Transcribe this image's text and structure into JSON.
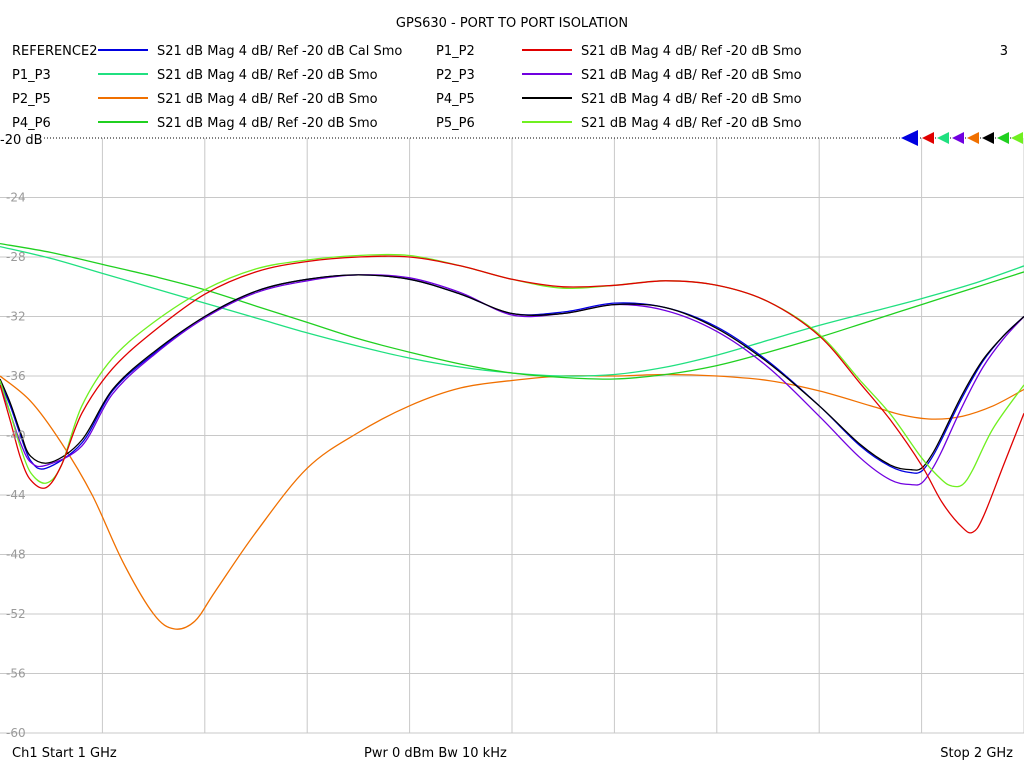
{
  "chart_data": {
    "type": "line",
    "title": "GPS630 - PORT TO PORT ISOLATION",
    "window_number": "3",
    "ref_label": "-20 dB",
    "x_unit": "GHz",
    "x_start": 1.0,
    "x_stop": 2.0,
    "ylim": [
      -60,
      -20
    ],
    "y_ticks": [
      -24,
      -28,
      -32,
      -36,
      -40,
      -44,
      -48,
      -52,
      -56,
      -60
    ],
    "y_tick_labels": [
      "-24",
      "-28",
      "-32",
      "-36",
      "-40",
      "-44",
      "-48",
      "-52",
      "-56",
      "-60"
    ],
    "grid": true,
    "legend_position": "top",
    "footer": {
      "start": "Ch1  Start  1 GHz",
      "power": "Pwr  0 dBm  Bw  10 kHz",
      "stop": "Stop  2 GHz"
    },
    "series": [
      {
        "name": "REFERENCE2",
        "desc": "S21  dB Mag  4 dB/ Ref -20 dB  Cal Smo",
        "color": "#0000e0",
        "x": [
          1.0,
          1.01,
          1.02,
          1.03,
          1.045,
          1.08,
          1.11,
          1.15,
          1.2,
          1.25,
          1.3,
          1.35,
          1.4,
          1.45,
          1.5,
          1.55,
          1.6,
          1.65,
          1.7,
          1.75,
          1.8,
          1.84,
          1.87,
          1.89,
          1.9,
          1.91,
          1.92,
          1.94,
          1.96,
          1.98,
          2.0
        ],
        "values": [
          -36.4,
          -38.0,
          -40.0,
          -41.7,
          -42.2,
          -40.5,
          -37.0,
          -34.5,
          -32.0,
          -30.3,
          -29.5,
          -29.2,
          -29.5,
          -30.5,
          -31.8,
          -31.7,
          -31.1,
          -31.4,
          -32.7,
          -35.0,
          -38.0,
          -40.7,
          -42.1,
          -42.5,
          -42.4,
          -41.5,
          -40.2,
          -37.4,
          -35.0,
          -33.3,
          -32.0
        ]
      },
      {
        "name": "P1_P2",
        "desc": "S21  dB Mag  4 dB/ Ref -20 dB  Smo",
        "color": "#e00000",
        "x": [
          1.0,
          1.01,
          1.02,
          1.03,
          1.045,
          1.06,
          1.08,
          1.11,
          1.15,
          1.2,
          1.25,
          1.3,
          1.35,
          1.4,
          1.45,
          1.5,
          1.55,
          1.6,
          1.65,
          1.7,
          1.75,
          1.8,
          1.84,
          1.87,
          1.9,
          1.92,
          1.94,
          1.95,
          1.96,
          1.98,
          2.0
        ],
        "values": [
          -36.6,
          -39.0,
          -41.5,
          -43.0,
          -43.5,
          -42.0,
          -38.5,
          -35.5,
          -33.0,
          -30.5,
          -29.0,
          -28.3,
          -28.0,
          -28.0,
          -28.6,
          -29.5,
          -30.0,
          -29.9,
          -29.6,
          -29.9,
          -31.0,
          -33.3,
          -36.5,
          -39.0,
          -42.0,
          -44.5,
          -46.2,
          -46.5,
          -45.5,
          -42.0,
          -38.5
        ]
      },
      {
        "name": "P1_P3",
        "desc": "S21  dB Mag  4 dB/ Ref -20 dB  Smo",
        "color": "#20e080",
        "x": [
          1.0,
          1.05,
          1.1,
          1.15,
          1.2,
          1.25,
          1.3,
          1.35,
          1.4,
          1.45,
          1.5,
          1.55,
          1.6,
          1.65,
          1.7,
          1.75,
          1.8,
          1.85,
          1.9,
          1.95,
          2.0
        ],
        "values": [
          -27.3,
          -28.1,
          -29.1,
          -30.1,
          -31.1,
          -32.1,
          -33.1,
          -34.0,
          -34.8,
          -35.4,
          -35.8,
          -36.0,
          -35.9,
          -35.4,
          -34.6,
          -33.6,
          -32.6,
          -31.7,
          -30.8,
          -29.8,
          -28.6
        ]
      },
      {
        "name": "P2_P3",
        "desc": "S21  dB Mag  4 dB/ Ref -20 dB  Smo",
        "color": "#7000e0",
        "x": [
          1.0,
          1.01,
          1.02,
          1.03,
          1.045,
          1.08,
          1.11,
          1.15,
          1.2,
          1.25,
          1.3,
          1.35,
          1.4,
          1.45,
          1.5,
          1.55,
          1.6,
          1.65,
          1.7,
          1.75,
          1.8,
          1.84,
          1.87,
          1.89,
          1.9,
          1.91,
          1.92,
          1.94,
          1.96,
          1.98,
          2.0
        ],
        "values": [
          -36.6,
          -38.5,
          -40.5,
          -41.8,
          -42.0,
          -40.7,
          -37.2,
          -34.6,
          -32.1,
          -30.4,
          -29.6,
          -29.2,
          -29.4,
          -30.4,
          -31.9,
          -31.8,
          -31.2,
          -31.6,
          -33.0,
          -35.4,
          -38.7,
          -41.5,
          -43.0,
          -43.3,
          -43.2,
          -42.3,
          -41.0,
          -38.0,
          -35.4,
          -33.5,
          -32.0
        ]
      },
      {
        "name": "P2_P5",
        "desc": "S21  dB Mag  4 dB/ Ref -20 dB  Smo",
        "color": "#f07000",
        "x": [
          1.0,
          1.03,
          1.06,
          1.09,
          1.12,
          1.15,
          1.17,
          1.19,
          1.21,
          1.25,
          1.3,
          1.35,
          1.4,
          1.45,
          1.5,
          1.55,
          1.6,
          1.65,
          1.7,
          1.75,
          1.8,
          1.85,
          1.88,
          1.91,
          1.94,
          1.97,
          2.0
        ],
        "values": [
          -36.0,
          -37.7,
          -40.5,
          -44.0,
          -48.5,
          -52.0,
          -53.0,
          -52.5,
          -50.5,
          -46.5,
          -42.2,
          -39.8,
          -38.0,
          -36.8,
          -36.3,
          -36.0,
          -36.0,
          -35.9,
          -36.0,
          -36.3,
          -37.0,
          -38.0,
          -38.6,
          -38.9,
          -38.7,
          -38.0,
          -36.9
        ]
      },
      {
        "name": "P4_P5",
        "desc": "S21  dB Mag  4 dB/ Ref -20 dB  Smo",
        "color": "#000000",
        "x": [
          1.0,
          1.01,
          1.02,
          1.03,
          1.05,
          1.08,
          1.11,
          1.15,
          1.2,
          1.25,
          1.3,
          1.35,
          1.4,
          1.45,
          1.5,
          1.55,
          1.6,
          1.65,
          1.7,
          1.75,
          1.8,
          1.84,
          1.87,
          1.89,
          1.9,
          1.91,
          1.92,
          1.94,
          1.96,
          1.98,
          2.0
        ],
        "values": [
          -36.2,
          -37.8,
          -39.8,
          -41.4,
          -41.8,
          -40.3,
          -36.9,
          -34.4,
          -32.0,
          -30.3,
          -29.5,
          -29.2,
          -29.5,
          -30.5,
          -31.8,
          -31.8,
          -31.2,
          -31.4,
          -32.8,
          -35.1,
          -38.0,
          -40.6,
          -42.0,
          -42.3,
          -42.2,
          -41.3,
          -40.0,
          -37.2,
          -34.9,
          -33.3,
          -32.0
        ]
      },
      {
        "name": "P4_P6",
        "desc": "S21  dB Mag  4 dB/ Ref -20 dB  Smo",
        "color": "#20d020",
        "x": [
          1.0,
          1.05,
          1.1,
          1.15,
          1.2,
          1.25,
          1.3,
          1.35,
          1.4,
          1.45,
          1.5,
          1.55,
          1.6,
          1.65,
          1.7,
          1.75,
          1.8,
          1.85,
          1.9,
          1.95,
          2.0
        ],
        "values": [
          -27.1,
          -27.7,
          -28.5,
          -29.3,
          -30.2,
          -31.3,
          -32.4,
          -33.5,
          -34.4,
          -35.2,
          -35.8,
          -36.1,
          -36.2,
          -35.9,
          -35.3,
          -34.4,
          -33.4,
          -32.3,
          -31.2,
          -30.1,
          -29.0
        ]
      },
      {
        "name": "P5_P6",
        "desc": "S21  dB Mag  4 dB/ Ref -20 dB  Smo",
        "color": "#70f020",
        "x": [
          1.0,
          1.01,
          1.02,
          1.03,
          1.045,
          1.06,
          1.08,
          1.11,
          1.15,
          1.2,
          1.25,
          1.3,
          1.35,
          1.4,
          1.45,
          1.5,
          1.55,
          1.6,
          1.65,
          1.7,
          1.75,
          1.8,
          1.84,
          1.87,
          1.9,
          1.92,
          1.93,
          1.94,
          1.95,
          1.97,
          2.0
        ],
        "values": [
          -36.3,
          -38.5,
          -40.8,
          -42.5,
          -43.2,
          -42.0,
          -38.0,
          -34.8,
          -32.4,
          -30.2,
          -28.8,
          -28.2,
          -27.9,
          -27.9,
          -28.6,
          -29.5,
          -30.1,
          -29.9,
          -29.6,
          -29.9,
          -31.0,
          -33.2,
          -36.3,
          -38.6,
          -41.5,
          -43.0,
          -43.4,
          -43.3,
          -42.3,
          -39.5,
          -36.6
        ]
      }
    ]
  }
}
